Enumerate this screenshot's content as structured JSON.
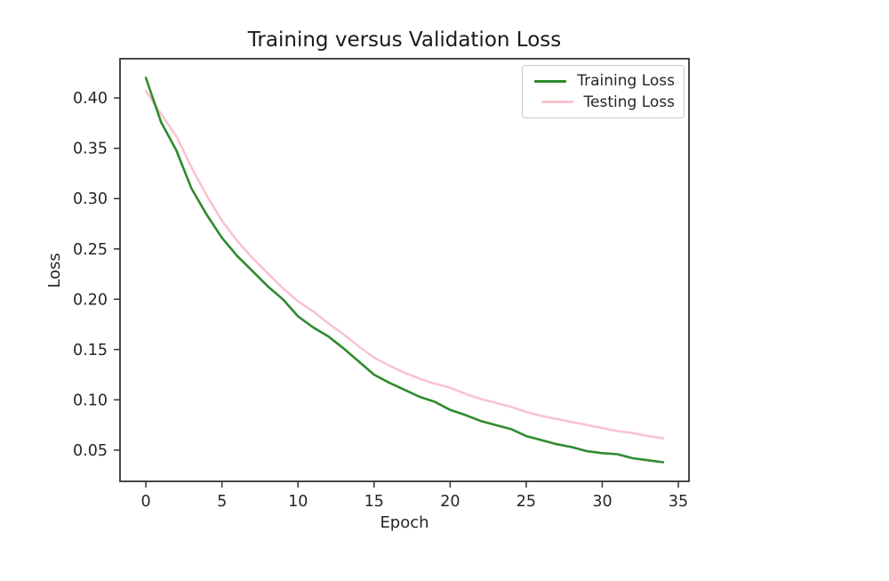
{
  "chart_data": {
    "type": "line",
    "title": "Training versus Validation Loss",
    "xlabel": "Epoch",
    "ylabel": "Loss",
    "x": [
      0,
      1,
      2,
      3,
      4,
      5,
      6,
      7,
      8,
      9,
      10,
      11,
      12,
      13,
      14,
      15,
      16,
      17,
      18,
      19,
      20,
      21,
      22,
      23,
      24,
      25,
      26,
      27,
      28,
      29,
      30,
      31,
      32,
      33,
      34
    ],
    "series": [
      {
        "name": "Training Loss",
        "color": "#2e8b2e",
        "values": [
          0.42,
          0.376,
          0.348,
          0.31,
          0.284,
          0.261,
          0.243,
          0.228,
          0.213,
          0.2,
          0.183,
          0.172,
          0.163,
          0.151,
          0.138,
          0.125,
          0.117,
          0.11,
          0.103,
          0.098,
          0.09,
          0.085,
          0.079,
          0.075,
          0.071,
          0.064,
          0.06,
          0.056,
          0.053,
          0.049,
          0.047,
          0.046,
          0.042,
          0.04,
          0.038
        ]
      },
      {
        "name": "Testing Loss",
        "color": "#f9c4ce",
        "values": [
          0.407,
          0.384,
          0.362,
          0.331,
          0.303,
          0.278,
          0.258,
          0.241,
          0.226,
          0.211,
          0.198,
          0.188,
          0.176,
          0.165,
          0.153,
          0.142,
          0.134,
          0.127,
          0.121,
          0.116,
          0.112,
          0.106,
          0.101,
          0.097,
          0.093,
          0.088,
          0.084,
          0.081,
          0.078,
          0.075,
          0.072,
          0.069,
          0.067,
          0.064,
          0.062
        ]
      }
    ],
    "x_ticks": [
      0,
      5,
      10,
      15,
      20,
      25,
      30,
      35
    ],
    "y_ticks": [
      0.05,
      0.1,
      0.15,
      0.2,
      0.25,
      0.3,
      0.35,
      0.4
    ],
    "xlim": [
      -1.7,
      35.7
    ],
    "ylim": [
      0.019,
      0.439
    ],
    "grid": false,
    "legend_position": "upper right",
    "axis_color": "#333333",
    "text_color": "#262626"
  }
}
